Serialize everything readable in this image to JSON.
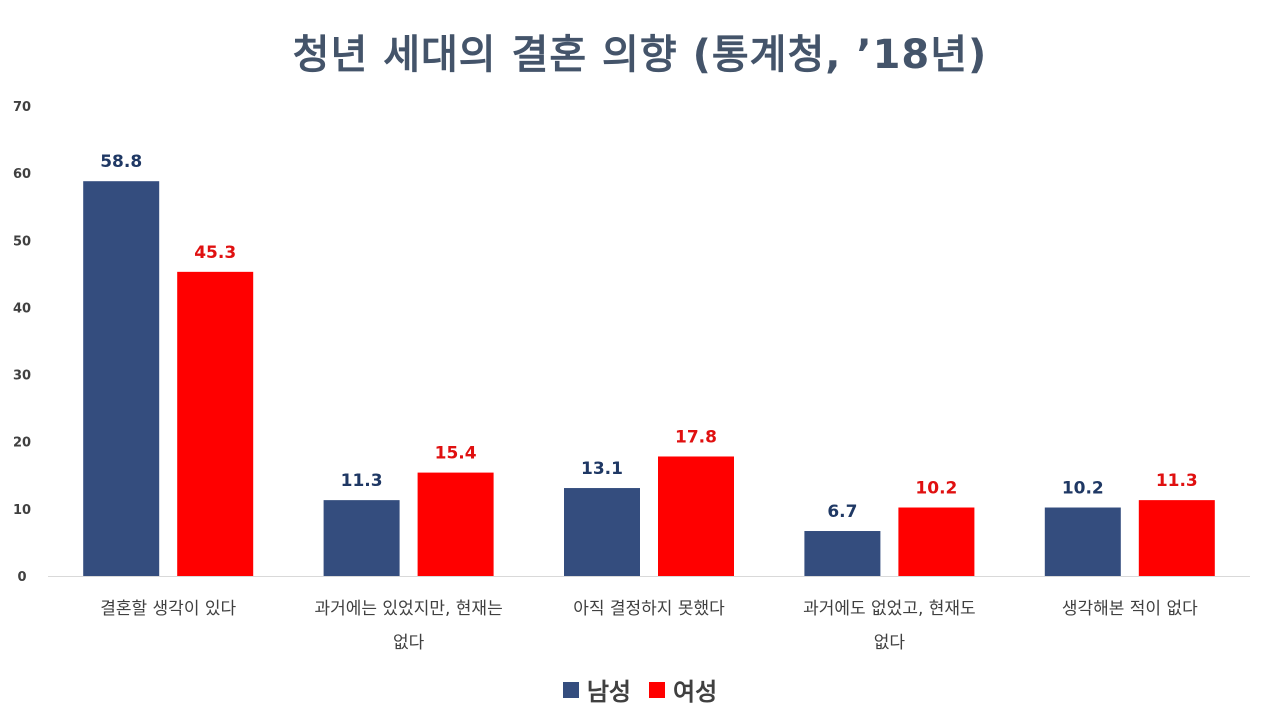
{
  "chart_data": {
    "type": "bar",
    "title": "청년 세대의 결혼 의향 (통계청, ’18년)",
    "categories": [
      [
        "결혼할 생각이 있다"
      ],
      [
        "과거에는 있었지만, 현재는",
        "없다"
      ],
      [
        "아직 결정하지 못했다"
      ],
      [
        "과거에도 없었고, 현재도",
        "없다"
      ],
      [
        "생각해본 적이 없다"
      ]
    ],
    "series": [
      {
        "name": "남성",
        "color": "#344d7e",
        "label_color": "#1f3864",
        "values": [
          58.8,
          11.3,
          13.1,
          6.7,
          10.2
        ]
      },
      {
        "name": "여성",
        "color": "#ff0000",
        "label_color": "#e01010",
        "values": [
          45.3,
          15.4,
          17.8,
          10.2,
          11.3
        ]
      }
    ],
    "y_ticks": [
      0,
      10,
      20,
      30,
      40,
      50,
      60,
      70
    ],
    "ylim": [
      0,
      70
    ],
    "grid": false,
    "legend_position": "bottom"
  }
}
